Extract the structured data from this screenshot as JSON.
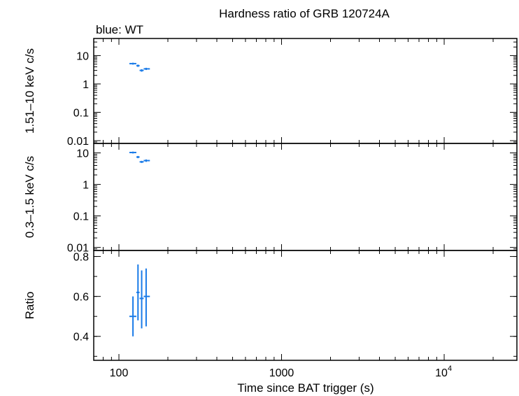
{
  "chart_data": {
    "type": "scatter",
    "title": "Hardness ratio of GRB 120724A",
    "legend_text": "blue: WT",
    "colors": {
      "series": "#1a7be8",
      "axes": "#000000",
      "background": "#ffffff"
    },
    "x_axis": {
      "label": "Time since BAT trigger (s)",
      "scale": "log",
      "lim": [
        70,
        28000
      ],
      "ticks": [
        {
          "value": 100,
          "label": "100"
        },
        {
          "value": 1000,
          "label": "1000"
        },
        {
          "value": 10000,
          "label": "10",
          "exponent": "4"
        }
      ]
    },
    "panels": [
      {
        "id": "hard",
        "ylabel": "1.51–10 keV c/s",
        "yscale": "log",
        "ylim": [
          0.008,
          40
        ],
        "ticks": [
          {
            "value": 10,
            "label": "10"
          },
          {
            "value": 1,
            "label": "1"
          },
          {
            "value": 0.1,
            "label": "0.1"
          },
          {
            "value": 0.01,
            "label": "0.01"
          }
        ],
        "points": [
          {
            "x": 122,
            "xlo": 116,
            "xhi": 128,
            "y": 5.2,
            "ylo": 4.8,
            "yhi": 5.6
          },
          {
            "x": 131,
            "xlo": 128,
            "xhi": 134,
            "y": 4.4,
            "ylo": 4.0,
            "yhi": 4.8
          },
          {
            "x": 138,
            "xlo": 134,
            "xhi": 142,
            "y": 3.0,
            "ylo": 2.7,
            "yhi": 3.3
          },
          {
            "x": 147,
            "xlo": 142,
            "xhi": 155,
            "y": 3.4,
            "ylo": 3.1,
            "yhi": 3.7
          }
        ]
      },
      {
        "id": "soft",
        "ylabel": "0.3–1.5 keV c/s",
        "yscale": "log",
        "ylim": [
          0.008,
          20
        ],
        "ticks": [
          {
            "value": 10,
            "label": "10"
          },
          {
            "value": 1,
            "label": "1"
          },
          {
            "value": 0.1,
            "label": "0.1"
          },
          {
            "value": 0.01,
            "label": "0.01"
          }
        ],
        "points": [
          {
            "x": 122,
            "xlo": 116,
            "xhi": 128,
            "y": 10.3,
            "ylo": 9.6,
            "yhi": 11.0
          },
          {
            "x": 131,
            "xlo": 128,
            "xhi": 134,
            "y": 7.4,
            "ylo": 6.8,
            "yhi": 8.0
          },
          {
            "x": 138,
            "xlo": 134,
            "xhi": 142,
            "y": 5.2,
            "ylo": 4.8,
            "yhi": 5.6
          },
          {
            "x": 147,
            "xlo": 142,
            "xhi": 155,
            "y": 5.7,
            "ylo": 5.2,
            "yhi": 6.2
          }
        ]
      },
      {
        "id": "ratio",
        "ylabel": "Ratio",
        "yscale": "linear",
        "ylim": [
          0.28,
          0.83
        ],
        "ticks": [
          {
            "value": 0.8,
            "label": "0.8"
          },
          {
            "value": 0.6,
            "label": "0.6"
          },
          {
            "value": 0.4,
            "label": "0.4"
          }
        ],
        "points": [
          {
            "x": 122,
            "xlo": 116,
            "xhi": 128,
            "y": 0.5,
            "ylo": 0.4,
            "yhi": 0.6
          },
          {
            "x": 131,
            "xlo": 128,
            "xhi": 134,
            "y": 0.62,
            "ylo": 0.48,
            "yhi": 0.76
          },
          {
            "x": 138,
            "xlo": 134,
            "xhi": 142,
            "y": 0.59,
            "ylo": 0.44,
            "yhi": 0.73
          },
          {
            "x": 147,
            "xlo": 142,
            "xhi": 155,
            "y": 0.6,
            "ylo": 0.45,
            "yhi": 0.74
          }
        ]
      }
    ]
  }
}
